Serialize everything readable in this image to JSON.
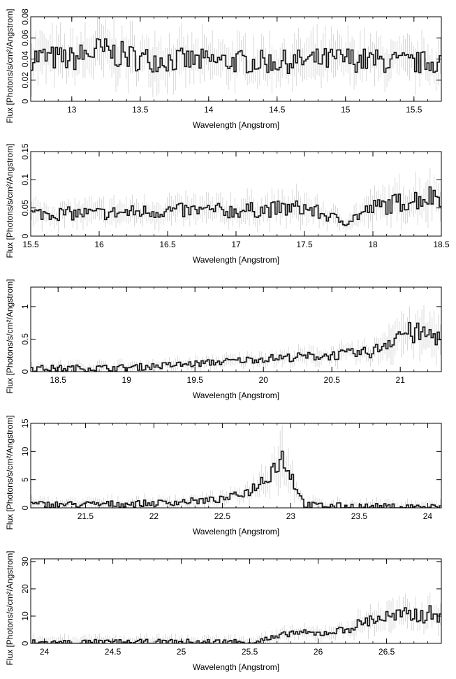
{
  "chart_data": [
    {
      "type": "line",
      "xlabel": "Wavelength [Angstrom]",
      "ylabel": "Flux [Photons/s/cm²/Angstrom]",
      "xlim": [
        12.7,
        15.7
      ],
      "ylim": [
        0,
        0.08
      ],
      "xticks": [
        "13",
        "13.5",
        "14",
        "14.5",
        "15",
        "15.5"
      ],
      "xtick_values": [
        13,
        13.5,
        14,
        14.5,
        15,
        15.5
      ],
      "yticks": [
        "0",
        "0.02",
        "0.04",
        "0.06",
        "0.08"
      ],
      "ytick_values": [
        0,
        0.02,
        0.04,
        0.06,
        0.08
      ],
      "grid": false,
      "series": [
        {
          "x": [
            12.7,
            13.0,
            13.2,
            13.5,
            14.0,
            14.5,
            15.0,
            15.5,
            15.7
          ],
          "y": [
            0.042,
            0.04,
            0.048,
            0.04,
            0.038,
            0.037,
            0.04,
            0.036,
            0.038
          ]
        }
      ]
    },
    {
      "type": "line",
      "xlabel": "Wavelength [Angstrom]",
      "ylabel": "Flux [Photons/s/cm²/Angstrom]",
      "xlim": [
        15.5,
        18.5
      ],
      "ylim": [
        0,
        0.15
      ],
      "xticks": [
        "15.5",
        "16",
        "16.5",
        "17",
        "17.5",
        "18",
        "18.5"
      ],
      "xtick_values": [
        15.5,
        16,
        16.5,
        17,
        17.5,
        18,
        18.5
      ],
      "yticks": [
        "0",
        "0.05",
        "0.1",
        "0.15"
      ],
      "ytick_values": [
        0,
        0.05,
        0.1,
        0.15
      ],
      "grid": false,
      "series": [
        {
          "x": [
            15.5,
            16.0,
            16.5,
            17.0,
            17.5,
            17.8,
            18.0,
            18.5
          ],
          "y": [
            0.04,
            0.04,
            0.045,
            0.045,
            0.05,
            0.025,
            0.05,
            0.075
          ]
        }
      ]
    },
    {
      "type": "line",
      "xlabel": "Wavelength [Angstrom]",
      "ylabel": "Flux [Photons/s/cm²/Angstrom]",
      "xlim": [
        18.3,
        21.3
      ],
      "ylim": [
        0,
        1.3
      ],
      "xticks": [
        "18.5",
        "19",
        "19.5",
        "20",
        "20.5",
        "21"
      ],
      "xtick_values": [
        18.5,
        19,
        19.5,
        20,
        20.5,
        21
      ],
      "yticks": [
        "0",
        "0.5",
        "1"
      ],
      "ytick_values": [
        0,
        0.5,
        1
      ],
      "grid": false,
      "series": [
        {
          "x": [
            18.3,
            18.5,
            19.0,
            19.5,
            20.0,
            20.5,
            20.8,
            21.0,
            21.3
          ],
          "y": [
            0.05,
            0.05,
            0.06,
            0.12,
            0.2,
            0.25,
            0.3,
            0.6,
            0.55
          ]
        }
      ]
    },
    {
      "type": "line",
      "xlabel": "Wavelength [Angstrom]",
      "ylabel": "Flux [Photons/s/cm²/Angstrom]",
      "xlim": [
        21.1,
        24.1
      ],
      "ylim": [
        0,
        15
      ],
      "xticks": [
        "21.5",
        "22",
        "22.5",
        "23",
        "23.5",
        "24"
      ],
      "xtick_values": [
        21.5,
        22,
        22.5,
        23,
        23.5,
        24
      ],
      "yticks": [
        "0",
        "5",
        "10",
        "15"
      ],
      "ytick_values": [
        0,
        5,
        10,
        15
      ],
      "grid": false,
      "series": [
        {
          "x": [
            21.1,
            21.5,
            22.0,
            22.5,
            22.7,
            22.8,
            22.9,
            22.95,
            23.0,
            23.1,
            23.5,
            24.1
          ],
          "y": [
            0.6,
            0.6,
            0.8,
            1.5,
            3.0,
            5.0,
            8.0,
            9.0,
            6.0,
            0.5,
            0.2,
            0.1
          ]
        }
      ]
    },
    {
      "type": "line",
      "xlabel": "Wavelength [Angstrom]",
      "ylabel": "Flux [Photons/s/cm²/Angstrom]",
      "xlim": [
        23.9,
        26.9
      ],
      "ylim": [
        0,
        31
      ],
      "xticks": [
        "24",
        "24.5",
        "25",
        "25.5",
        "26",
        "26.5"
      ],
      "xtick_values": [
        24,
        24.5,
        25,
        25.5,
        26,
        26.5
      ],
      "yticks": [
        "0",
        "10",
        "20",
        "30"
      ],
      "ytick_values": [
        0,
        10,
        20,
        30
      ],
      "grid": false,
      "series": [
        {
          "x": [
            23.9,
            24.5,
            25.0,
            25.5,
            25.7,
            25.8,
            26.0,
            26.2,
            26.4,
            26.6,
            26.9
          ],
          "y": [
            0.2,
            0.2,
            0.3,
            0.5,
            2.0,
            4.0,
            3.5,
            5.0,
            9.0,
            10.0,
            11.0
          ]
        }
      ]
    }
  ]
}
